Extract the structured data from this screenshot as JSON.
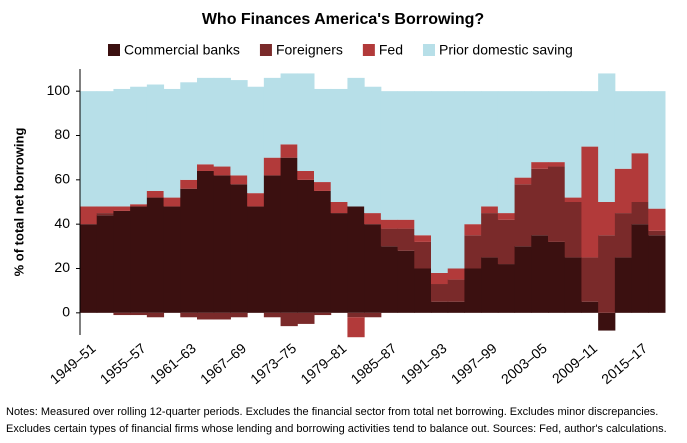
{
  "chart_data": {
    "type": "stacked_area",
    "title": "Who Finances America's Borrowing?",
    "y_label": "% of total net borrowing",
    "notes": [
      "Notes: Measured over rolling 12-quarter periods. Excludes the financial sector from total net borrowing. Excludes minor discrepancies.",
      "Excludes certain types of financial firms whose lending and borrowing activities tend to balance out. Sources: Fed, author's calculations."
    ],
    "categories": [
      "1949–51",
      null,
      null,
      "1955–57",
      null,
      null,
      "1961–63",
      null,
      null,
      "1967–69",
      null,
      null,
      "1973–75",
      null,
      null,
      "1979–81",
      null,
      null,
      "1985–87",
      null,
      null,
      "1991–93",
      null,
      null,
      "1997–99",
      null,
      null,
      "2003–05",
      null,
      null,
      "2009–11",
      null,
      null,
      "2015–17",
      null
    ],
    "series": [
      {
        "name": "Commercial banks",
        "color": "#3b1010",
        "values": [
          40,
          44,
          46,
          48,
          52,
          48,
          56,
          64,
          62,
          58,
          48,
          62,
          70,
          60,
          55,
          45,
          48,
          40,
          30,
          28,
          20,
          5,
          5,
          20,
          25,
          22,
          30,
          35,
          32,
          25,
          5,
          -8,
          25,
          40,
          35
        ]
      },
      {
        "name": "Foreigners",
        "color": "#7a2a2a",
        "values": [
          0,
          1,
          -1,
          -1,
          -2,
          0,
          -2,
          -3,
          -3,
          -2,
          0,
          -2,
          -6,
          -5,
          -1,
          0,
          -2,
          -2,
          8,
          10,
          12,
          8,
          10,
          15,
          20,
          20,
          28,
          30,
          34,
          25,
          20,
          35,
          20,
          10,
          2
        ]
      },
      {
        "name": "Fed",
        "color": "#b23a3a",
        "values": [
          8,
          3,
          2,
          1,
          3,
          4,
          4,
          3,
          4,
          4,
          6,
          8,
          6,
          4,
          4,
          5,
          -9,
          5,
          4,
          4,
          3,
          5,
          5,
          5,
          3,
          3,
          3,
          3,
          2,
          2,
          50,
          15,
          20,
          22,
          10
        ]
      },
      {
        "name": "Prior domestic saving",
        "color": "#b7dfe8",
        "values": [
          52,
          52,
          53,
          53,
          48,
          49,
          44,
          39,
          40,
          43,
          48,
          36,
          32,
          44,
          42,
          51,
          58,
          57,
          58,
          58,
          65,
          82,
          80,
          60,
          52,
          55,
          39,
          32,
          32,
          48,
          25,
          58,
          35,
          28,
          53
        ]
      }
    ],
    "ylim": [
      -10,
      110
    ],
    "yticks": [
      0,
      20,
      40,
      60,
      80,
      100
    ]
  }
}
